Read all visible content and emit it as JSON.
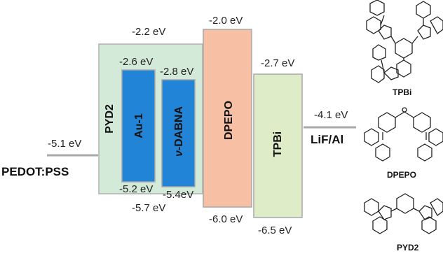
{
  "layers": {
    "pedot": {
      "name": "PEDOT:PSS",
      "homo": "-5.1 eV"
    },
    "pyd2": {
      "name": "PYD2",
      "lumo": "-2.2 eV",
      "homo": "-5.7 eV"
    },
    "au1": {
      "name": "Au-1",
      "lumo": "-2.6 eV",
      "homo": "-5.2 eV"
    },
    "vdabna": {
      "name_prefix": "ν",
      "name_suffix": "-DABNA",
      "lumo": "-2.8 eV",
      "homo": "-5.4eV"
    },
    "dpepo": {
      "name": "DPEPO",
      "lumo": "-2.0 eV",
      "homo": "-6.0 eV"
    },
    "tpbi": {
      "name": "TPBi",
      "lumo": "-2.7 eV",
      "homo": "-6.5 eV"
    },
    "lif": {
      "name": "LiF/Al",
      "level": "-4.1 eV"
    }
  },
  "structures": [
    {
      "name": "TPBi"
    },
    {
      "name": "DPEPO"
    },
    {
      "name": "PYD2"
    }
  ],
  "colors": {
    "pyd2": "#d4ead9",
    "emitter": "#2184d6",
    "dpepo": "#f7bfa3",
    "tpbi": "#deecc8",
    "electrode": "#a8a8a8"
  }
}
